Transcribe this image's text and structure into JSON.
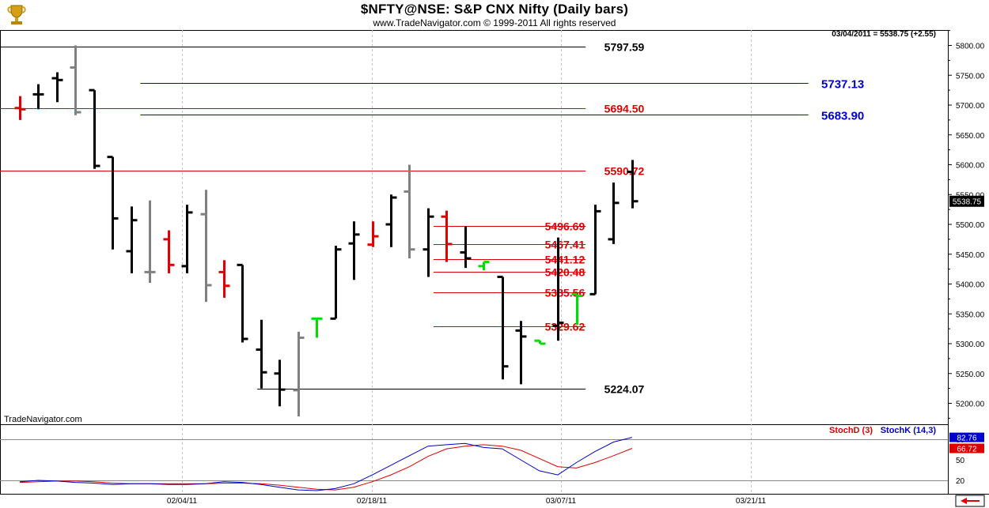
{
  "header": {
    "title": "$NFTY@NSE:  S&P CNX Nifty  (Daily bars)",
    "copyright": "www.TradeNavigator.com © 1999-2011 All rights reserved",
    "readout": "03/04/2011 = 5538.75 (+2.55)",
    "watermark": "TradeNavigator.com"
  },
  "colors": {
    "up": "#000000",
    "down_red": "#e00000",
    "gray": "#808080",
    "green": "#00dd00",
    "support_black": "#000000",
    "level_red": "#dd0000",
    "level_blue": "#0000cc",
    "stoch_d": "#dd0000",
    "stoch_k": "#0000cc"
  },
  "icons": {
    "logo": "trophy-icon",
    "scroll": "scroll-arrow-icon"
  },
  "chart_data": {
    "type": "ohlc",
    "title": "$NFTY@NSE:  S&P CNX Nifty  (Daily bars)",
    "xlabel": "",
    "ylabel": "",
    "ylim": [
      5165,
      5820
    ],
    "grid": true,
    "x_ticks": [
      "02/04/11",
      "02/18/11",
      "03/07/11",
      "03/21/11"
    ],
    "y_ticks": [
      5200,
      5250,
      5300,
      5350,
      5400,
      5450,
      5500,
      5550,
      5600,
      5650,
      5700,
      5750,
      5800
    ],
    "last_price": "5538.75",
    "bars": [
      {
        "o": 5695,
        "h": 5715,
        "l": 5675,
        "c": 5693,
        "color": "red"
      },
      {
        "o": 5718,
        "h": 5735,
        "l": 5693,
        "c": 5718,
        "color": "black"
      },
      {
        "o": 5745,
        "h": 5755,
        "l": 5705,
        "c": 5742,
        "color": "black"
      },
      {
        "o": 5763,
        "h": 5800,
        "l": 5683,
        "c": 5688,
        "color": "gray"
      },
      {
        "o": 5725,
        "h": 5725,
        "l": 5593,
        "c": 5598,
        "color": "black"
      },
      {
        "o": 5613,
        "h": 5613,
        "l": 5458,
        "c": 5510,
        "color": "black"
      },
      {
        "o": 5455,
        "h": 5530,
        "l": 5418,
        "c": 5507,
        "color": "black"
      },
      {
        "o": 5420,
        "h": 5540,
        "l": 5402,
        "c": 5420,
        "color": "gray"
      },
      {
        "o": 5475,
        "h": 5490,
        "l": 5418,
        "c": 5432,
        "color": "red"
      },
      {
        "o": 5430,
        "h": 5533,
        "l": 5418,
        "c": 5520,
        "color": "black"
      },
      {
        "o": 5517,
        "h": 5558,
        "l": 5370,
        "c": 5398,
        "color": "gray"
      },
      {
        "o": 5420,
        "h": 5440,
        "l": 5377,
        "c": 5397,
        "color": "red"
      },
      {
        "o": 5432,
        "h": 5432,
        "l": 5302,
        "c": 5308,
        "color": "black"
      },
      {
        "o": 5290,
        "h": 5340,
        "l": 5225,
        "c": 5252,
        "color": "black"
      },
      {
        "o": 5250,
        "h": 5273,
        "l": 5195,
        "c": 5223,
        "color": "black"
      },
      {
        "o": 5222,
        "h": 5320,
        "l": 5178,
        "c": 5310,
        "color": "gray"
      },
      {
        "o": 5342,
        "h": 5342,
        "l": 5310,
        "c": 5342,
        "color": "green"
      },
      {
        "o": 5342,
        "h": 5464,
        "l": 5342,
        "c": 5458,
        "color": "black"
      },
      {
        "o": 5468,
        "h": 5505,
        "l": 5407,
        "c": 5483,
        "color": "black"
      },
      {
        "o": 5466,
        "h": 5505,
        "l": 5462,
        "c": 5480,
        "color": "red"
      },
      {
        "o": 5500,
        "h": 5550,
        "l": 5462,
        "c": 5545,
        "color": "black"
      },
      {
        "o": 5555,
        "h": 5600,
        "l": 5443,
        "c": 5458,
        "color": "gray"
      },
      {
        "o": 5458,
        "h": 5527,
        "l": 5412,
        "c": 5513,
        "color": "black"
      },
      {
        "o": 5513,
        "h": 5523,
        "l": 5437,
        "c": 5467,
        "color": "red"
      },
      {
        "o": 5453,
        "h": 5497,
        "l": 5427,
        "c": 5443,
        "color": "black"
      },
      {
        "o": 5430,
        "h": 5437,
        "l": 5423,
        "c": 5437,
        "color": "green"
      },
      {
        "o": 5412,
        "h": 5412,
        "l": 5240,
        "c": 5262,
        "color": "black"
      },
      {
        "o": 5322,
        "h": 5338,
        "l": 5232,
        "c": 5312,
        "color": "black"
      },
      {
        "o": 5305,
        "h": 5305,
        "l": 5300,
        "c": 5300,
        "color": "green"
      },
      {
        "o": 5330,
        "h": 5478,
        "l": 5305,
        "c": 5335,
        "color": "black"
      },
      {
        "o": 5383,
        "h": 5383,
        "l": 5332,
        "c": 5380,
        "color": "green"
      },
      {
        "o": 5383,
        "h": 5533,
        "l": 5383,
        "c": 5522,
        "color": "black"
      },
      {
        "o": 5475,
        "h": 5570,
        "l": 5467,
        "c": 5536,
        "color": "black"
      },
      {
        "o": 5588,
        "h": 5608,
        "l": 5527,
        "c": 5538.75,
        "color": "black"
      }
    ],
    "levels": [
      {
        "value": 5797.59,
        "label": "5797.59",
        "color": "black",
        "from_bar": -1,
        "to_bar": 30.5,
        "label_at_bar": 31.5
      },
      {
        "value": 5737.13,
        "label": "5737.13",
        "color": "blue",
        "from_bar": 6.5,
        "to_bar": 42.5,
        "label_at_bar": 43.2
      },
      {
        "value": 5694.5,
        "label": "5694.50",
        "color": "red",
        "from_bar": -1,
        "to_bar": 30.5,
        "label_at_bar": 31.5
      },
      {
        "value": 5683.9,
        "label": "5683.90",
        "color": "blue",
        "from_bar": 6.5,
        "to_bar": 42.5,
        "label_at_bar": 43.2
      },
      {
        "value": 5590.72,
        "label": "5590.72",
        "color": "red",
        "from_bar": -1,
        "to_bar": 30.5,
        "label_at_bar": 31.5
      },
      {
        "value": 5496.69,
        "label": "5496.69",
        "color": "red",
        "from_bar": 22.3,
        "to_bar": 30.5,
        "label_at_bar": 28.3
      },
      {
        "value": 5467.41,
        "label": "5467.41",
        "color": "red",
        "from_bar": 22.3,
        "to_bar": 30.5,
        "label_at_bar": 28.3
      },
      {
        "value": 5441.12,
        "label": "5441.12",
        "color": "red",
        "from_bar": 22.3,
        "to_bar": 30.5,
        "label_at_bar": 28.3
      },
      {
        "value": 5420.48,
        "label": "5420.48",
        "color": "red",
        "from_bar": 22.3,
        "to_bar": 30.5,
        "label_at_bar": 28.3
      },
      {
        "value": 5385.56,
        "label": "5385.56",
        "color": "red",
        "from_bar": 22.3,
        "to_bar": 30.5,
        "label_at_bar": 28.3
      },
      {
        "value": 5329.62,
        "label": "5329.62",
        "color": "red",
        "from_bar": 22.3,
        "to_bar": 30.5,
        "label_at_bar": 28.3
      },
      {
        "value": 5224.07,
        "label": "5224.07",
        "color": "black",
        "from_bar": 12.8,
        "to_bar": 30.5,
        "label_at_bar": 31.5
      }
    ],
    "stochastic": {
      "ylim": [
        0,
        100
      ],
      "y_ticks": [
        50
      ],
      "ref_lines": [
        20,
        80
      ],
      "d_label": "StochD (3)",
      "k_label": "StochK (14,3)",
      "d_last": "66.72",
      "k_last": "82.76",
      "k": [
        18,
        20,
        19,
        17,
        16,
        14,
        15,
        15,
        14,
        14,
        15,
        18,
        17,
        14,
        10,
        6,
        5,
        8,
        15,
        28,
        42,
        56,
        70,
        72,
        74,
        68,
        66,
        50,
        34,
        28,
        46,
        62,
        76,
        82.76
      ],
      "d": [
        17,
        18,
        19,
        19,
        18,
        16,
        15,
        15,
        15,
        15,
        15,
        16,
        16,
        15,
        13,
        10,
        7,
        6,
        10,
        18,
        28,
        40,
        55,
        66,
        70,
        72,
        70,
        64,
        52,
        40,
        38,
        46,
        56,
        66.72
      ]
    }
  }
}
